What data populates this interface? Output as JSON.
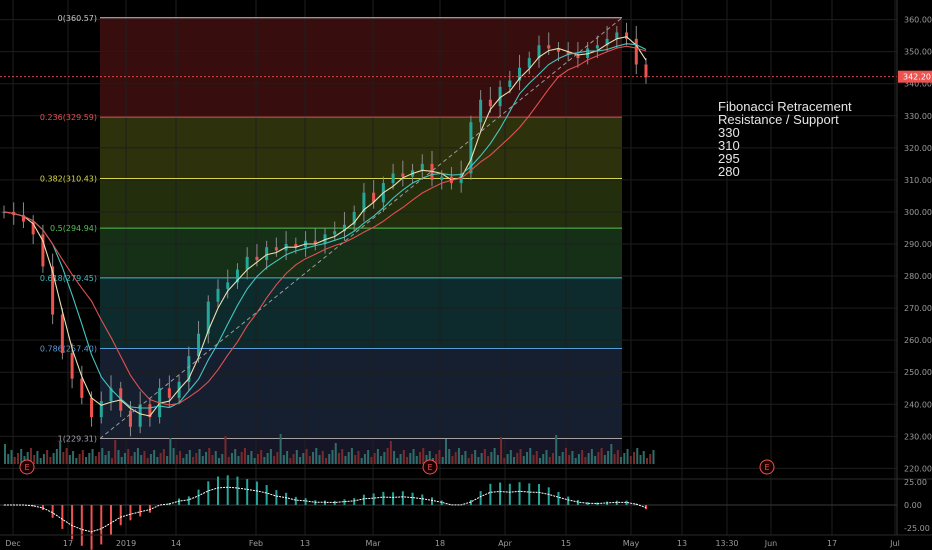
{
  "chart_data": {
    "type": "candlestick",
    "title": "",
    "price_axis": {
      "ylim": [
        217,
        363
      ],
      "ticks": [
        220,
        230,
        240,
        250,
        260,
        270,
        280,
        290,
        300,
        310,
        320,
        330,
        340,
        350,
        360
      ]
    },
    "osc_axis": {
      "ylim": [
        -27,
        27
      ],
      "ticks": [
        "25.00",
        "0.00",
        "-25.00"
      ]
    },
    "x_ticks": [
      "Dec",
      "17",
      "2019",
      "14",
      "Feb",
      "13",
      "Mar",
      "18",
      "Apr",
      "15",
      "May",
      "13",
      "13:30",
      "Jun",
      "17",
      "Jul"
    ],
    "current_price": {
      "label": "342.20",
      "value": 342.2
    },
    "fib_levels": [
      {
        "ratio": "0",
        "price": "360.57",
        "label": "0(360.57)",
        "color": "#c8c8c8"
      },
      {
        "ratio": "0.236",
        "price": "329.59",
        "label": "0.236(329.59)",
        "color": "#e05050"
      },
      {
        "ratio": "0.382",
        "price": "310.43",
        "label": "0.382(310.43)",
        "color": "#d6d64a"
      },
      {
        "ratio": "0.5",
        "price": "294.94",
        "label": "0.5(294.94)",
        "color": "#55c055"
      },
      {
        "ratio": "0.618",
        "price": "279.45",
        "label": "0.618(279.45)",
        "color": "#3cbcbc"
      },
      {
        "ratio": "0.786",
        "price": "257.40",
        "label": "0.786(257.40)",
        "color": "#5a9ad6"
      },
      {
        "ratio": "1",
        "price": "229.31",
        "label": "1(229.31)",
        "color": "#a0a0b0"
      }
    ],
    "annotation": [
      "Fibonacci Retracement",
      "Resistance / Support",
      "330",
      "310",
      "295",
      "280"
    ],
    "earnings_marker": "E",
    "series": [
      {
        "key": "ohlc_close",
        "values": [
          300,
          299,
          297,
          293,
          283,
          268,
          256,
          248,
          242,
          236,
          241,
          245,
          238,
          233,
          240,
          236,
          245,
          242,
          247,
          255,
          262,
          272,
          276,
          278,
          282,
          286,
          285,
          289,
          288,
          290,
          289,
          291,
          290,
          293,
          294,
          296,
          300,
          306,
          303,
          309,
          312,
          311,
          313,
          315,
          310,
          311,
          309,
          312,
          328,
          335,
          333,
          339,
          341,
          345,
          348,
          352,
          351,
          350,
          349,
          348,
          351,
          352,
          354,
          356,
          354,
          346,
          342
        ]
      }
    ]
  }
}
